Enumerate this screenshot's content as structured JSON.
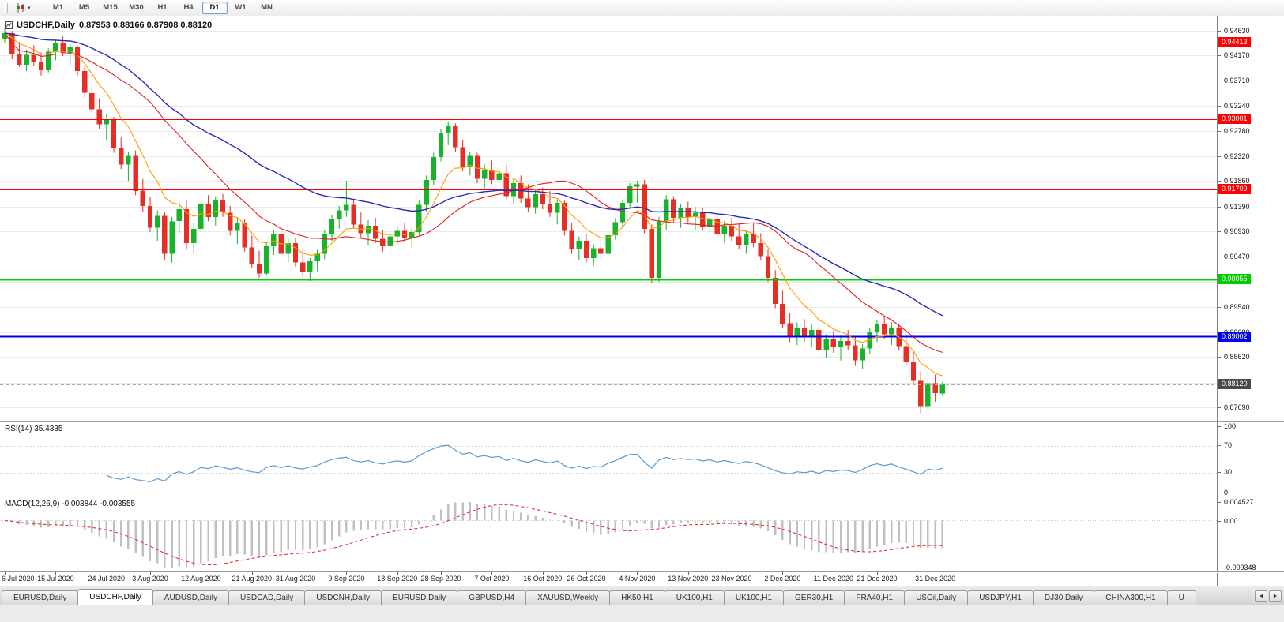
{
  "toolbar": {
    "timeframes": [
      "M1",
      "M5",
      "M15",
      "M30",
      "H1",
      "H4",
      "D1",
      "W1",
      "MN"
    ],
    "active_timeframe": "D1"
  },
  "icons": {
    "chart_type_dropdown": "▾",
    "tabs_scroll_left": "◄",
    "tabs_scroll_right": "►"
  },
  "chart_header": {
    "title": "USDCHF,Daily",
    "ohlc": "0.87953 0.88166 0.87908 0.88120"
  },
  "rsi_panel": {
    "label": "RSI(14) 35.4335",
    "levels": [
      "100",
      "70",
      "30",
      "0"
    ],
    "level_values": [
      100,
      70,
      30,
      0
    ]
  },
  "macd_panel": {
    "label": "MACD(12,26,9) -0.003844 -0.003555",
    "axis_max": "0.004527",
    "axis_zero": "0.00",
    "axis_min": "-0.009348"
  },
  "colors": {
    "candle_up": "#17b32a",
    "candle_down": "#e62e24",
    "grid": "#ebebeb",
    "rsi_line": "#5a9bd4",
    "rsi_level": "#c8c8c8",
    "macd_hist": "#c0c0c0",
    "macd_signal": "#e02020",
    "price_label_bg": "#4a4a4a",
    "current_price_line": "#ababab"
  },
  "tabs": {
    "items": [
      {
        "label": "EURUSD,Daily",
        "active": false
      },
      {
        "label": "USDCHF,Daily",
        "active": true
      },
      {
        "label": "AUDUSD,Daily",
        "active": false
      },
      {
        "label": "USDCAD,Daily",
        "active": false
      },
      {
        "label": "USDCNH,Daily",
        "active": false
      },
      {
        "label": "EURUSD,Daily",
        "active": false
      },
      {
        "label": "GBPUSD,H4",
        "active": false
      },
      {
        "label": "XAUUSD,Weekly",
        "active": false
      },
      {
        "label": "HK50,H1",
        "active": false
      },
      {
        "label": "UK100,H1",
        "active": false
      },
      {
        "label": "UK100,H1",
        "active": false
      },
      {
        "label": "GER30,H1",
        "active": false
      },
      {
        "label": "FRA40,H1",
        "active": false
      },
      {
        "label": "USOil,Daily",
        "active": false
      },
      {
        "label": "USDJPY,H1",
        "active": false
      },
      {
        "label": "DJ30,Daily",
        "active": false
      },
      {
        "label": "CHINA300,H1",
        "active": false
      },
      {
        "label": "U",
        "active": false
      }
    ]
  },
  "chart_data": {
    "type": "candlestick+indicators",
    "symbol": "USDCHF",
    "period": "Daily",
    "last_ohlc": {
      "open": 0.87953,
      "high": 0.88166,
      "low": 0.87908,
      "close": 0.8812
    },
    "y_range": [
      0.8745,
      0.949
    ],
    "price_axis_ticks": [
      "0.94630",
      "0.94170",
      "0.93710",
      "0.93240",
      "0.92780",
      "0.92320",
      "0.91860",
      "0.91390",
      "0.90930",
      "0.90470",
      "0.90000",
      "0.89540",
      "0.89080",
      "0.88620",
      "0.88150",
      "0.87690"
    ],
    "hlines": [
      {
        "price": 0.94413,
        "label": "0.94413",
        "color": "#ff0000",
        "width": 1.2
      },
      {
        "price": 0.93001,
        "label": "0.93001",
        "color": "#ff0000",
        "width": 1.2
      },
      {
        "price": 0.91709,
        "label": "0.91709",
        "color": "#ff0000",
        "width": 1.2
      },
      {
        "price": 0.90055,
        "label": "0.90055",
        "color": "#00cc00",
        "width": 1.6
      },
      {
        "price": 0.89002,
        "label": "0.89002",
        "color": "#0000ee",
        "width": 2.2
      }
    ],
    "current_price": {
      "value": 0.8812,
      "label": "0.88120"
    },
    "moving_averages": [
      {
        "name": "fast",
        "method": "ema",
        "period": 8,
        "color": "#ff9c00",
        "width": 1.1
      },
      {
        "name": "mid",
        "method": "sma",
        "period": 21,
        "color": "#e02020",
        "width": 1.1
      },
      {
        "name": "slow",
        "method": "ema",
        "period": 40,
        "color": "#2a2ab8",
        "width": 1.4
      }
    ],
    "rsi": {
      "period": 14,
      "last_value": 35.4335
    },
    "macd": {
      "fast": 12,
      "slow": 26,
      "signal": 9,
      "last_macd": -0.003844,
      "last_signal": -0.003555
    },
    "date_axis": {
      "labels": [
        "6 Jul 2020",
        "15 Jul 2020",
        "24 Jul 2020",
        "3 Aug 2020",
        "12 Aug 2020",
        "21 Aug 2020",
        "31 Aug 2020",
        "9 Sep 2020",
        "18 Sep 2020",
        "28 Sep 2020",
        "7 Oct 2020",
        "16 Oct 2020",
        "26 Oct 2020",
        "4 Nov 2020",
        "13 Nov 2020",
        "23 Nov 2020",
        "2 Dec 2020",
        "11 Dec 2020",
        "21 Dec 2020",
        "31 Dec 2020"
      ],
      "indices": [
        0,
        7,
        14,
        20,
        27,
        34,
        40,
        47,
        54,
        60,
        67,
        74,
        80,
        87,
        94,
        100,
        107,
        114,
        120,
        128
      ]
    },
    "candles": [
      [
        0.9448,
        0.9466,
        0.944,
        0.9458
      ],
      [
        0.9458,
        0.9462,
        0.941,
        0.942
      ],
      [
        0.942,
        0.9442,
        0.9396,
        0.94
      ],
      [
        0.94,
        0.9428,
        0.9388,
        0.9418
      ],
      [
        0.9418,
        0.9436,
        0.9398,
        0.9406
      ],
      [
        0.9406,
        0.9422,
        0.938,
        0.939
      ],
      [
        0.939,
        0.943,
        0.9386,
        0.9424
      ],
      [
        0.9424,
        0.9446,
        0.9408,
        0.944
      ],
      [
        0.944,
        0.9452,
        0.9416,
        0.9422
      ],
      [
        0.9422,
        0.9438,
        0.94,
        0.9432
      ],
      [
        0.9432,
        0.9436,
        0.938,
        0.9388
      ],
      [
        0.9388,
        0.9398,
        0.934,
        0.9348
      ],
      [
        0.9348,
        0.9366,
        0.931,
        0.9318
      ],
      [
        0.9318,
        0.9338,
        0.9282,
        0.929
      ],
      [
        0.929,
        0.931,
        0.9262,
        0.93
      ],
      [
        0.93,
        0.9304,
        0.9238,
        0.9246
      ],
      [
        0.9246,
        0.9266,
        0.9208,
        0.9216
      ],
      [
        0.9216,
        0.924,
        0.9186,
        0.9232
      ],
      [
        0.9232,
        0.9242,
        0.916,
        0.9168
      ],
      [
        0.9168,
        0.919,
        0.913,
        0.914
      ],
      [
        0.914,
        0.9156,
        0.9092,
        0.91
      ],
      [
        0.91,
        0.9132,
        0.9076,
        0.9122
      ],
      [
        0.9122,
        0.913,
        0.904,
        0.9052
      ],
      [
        0.9052,
        0.912,
        0.9036,
        0.9112
      ],
      [
        0.9112,
        0.9146,
        0.909,
        0.9134
      ],
      [
        0.9134,
        0.915,
        0.906,
        0.9072
      ],
      [
        0.9072,
        0.911,
        0.9052,
        0.9098
      ],
      [
        0.9098,
        0.9152,
        0.9088,
        0.9144
      ],
      [
        0.9144,
        0.916,
        0.9112,
        0.912
      ],
      [
        0.912,
        0.9158,
        0.9104,
        0.915
      ],
      [
        0.915,
        0.9162,
        0.912,
        0.9128
      ],
      [
        0.9128,
        0.914,
        0.9086,
        0.9094
      ],
      [
        0.9094,
        0.9118,
        0.907,
        0.9108
      ],
      [
        0.9108,
        0.9116,
        0.9056,
        0.9064
      ],
      [
        0.9064,
        0.9086,
        0.9026,
        0.9034
      ],
      [
        0.9034,
        0.9058,
        0.9008,
        0.9016
      ],
      [
        0.9016,
        0.9074,
        0.9012,
        0.9066
      ],
      [
        0.9066,
        0.9096,
        0.905,
        0.9088
      ],
      [
        0.9088,
        0.91,
        0.9044,
        0.9052
      ],
      [
        0.9052,
        0.908,
        0.9036,
        0.9072
      ],
      [
        0.9072,
        0.9082,
        0.9028,
        0.9036
      ],
      [
        0.9036,
        0.906,
        0.901,
        0.9018
      ],
      [
        0.9018,
        0.9044,
        0.9002,
        0.9038
      ],
      [
        0.9038,
        0.906,
        0.902,
        0.9052
      ],
      [
        0.9052,
        0.9096,
        0.9042,
        0.9088
      ],
      [
        0.9088,
        0.9124,
        0.9076,
        0.9116
      ],
      [
        0.9116,
        0.914,
        0.9098,
        0.9132
      ],
      [
        0.9132,
        0.9186,
        0.912,
        0.9142
      ],
      [
        0.9142,
        0.915,
        0.9098,
        0.9106
      ],
      [
        0.9106,
        0.9128,
        0.908,
        0.909
      ],
      [
        0.909,
        0.9114,
        0.9068,
        0.9104
      ],
      [
        0.9104,
        0.9118,
        0.9072,
        0.908
      ],
      [
        0.908,
        0.9096,
        0.9056,
        0.9066
      ],
      [
        0.9066,
        0.9092,
        0.905,
        0.9084
      ],
      [
        0.9084,
        0.9104,
        0.9068,
        0.9094
      ],
      [
        0.9094,
        0.911,
        0.9074,
        0.9082
      ],
      [
        0.9082,
        0.91,
        0.9064,
        0.9092
      ],
      [
        0.9092,
        0.915,
        0.9086,
        0.9142
      ],
      [
        0.9142,
        0.9196,
        0.913,
        0.9188
      ],
      [
        0.9188,
        0.9238,
        0.9178,
        0.923
      ],
      [
        0.923,
        0.9282,
        0.9222,
        0.9274
      ],
      [
        0.9274,
        0.9296,
        0.9252,
        0.9288
      ],
      [
        0.9288,
        0.9292,
        0.924,
        0.9248
      ],
      [
        0.9248,
        0.9262,
        0.9204,
        0.9212
      ],
      [
        0.9212,
        0.924,
        0.9196,
        0.9232
      ],
      [
        0.9232,
        0.9238,
        0.9182,
        0.919
      ],
      [
        0.919,
        0.9216,
        0.917,
        0.9206
      ],
      [
        0.9206,
        0.9224,
        0.918,
        0.9188
      ],
      [
        0.9188,
        0.921,
        0.9166,
        0.92
      ],
      [
        0.92,
        0.9218,
        0.915,
        0.9158
      ],
      [
        0.9158,
        0.919,
        0.9144,
        0.9182
      ],
      [
        0.9182,
        0.9196,
        0.9146,
        0.9154
      ],
      [
        0.9154,
        0.918,
        0.913,
        0.9138
      ],
      [
        0.9138,
        0.917,
        0.9126,
        0.9162
      ],
      [
        0.9162,
        0.9174,
        0.9134,
        0.9144
      ],
      [
        0.9144,
        0.9168,
        0.912,
        0.9128
      ],
      [
        0.9128,
        0.9152,
        0.9106,
        0.9146
      ],
      [
        0.9146,
        0.915,
        0.9086,
        0.9094
      ],
      [
        0.9094,
        0.911,
        0.9052,
        0.906
      ],
      [
        0.906,
        0.9084,
        0.904,
        0.9076
      ],
      [
        0.9076,
        0.9088,
        0.9036,
        0.9044
      ],
      [
        0.9044,
        0.907,
        0.903,
        0.9062
      ],
      [
        0.9062,
        0.908,
        0.9042,
        0.9052
      ],
      [
        0.9052,
        0.9092,
        0.9046,
        0.9086
      ],
      [
        0.9086,
        0.9118,
        0.9078,
        0.911
      ],
      [
        0.911,
        0.9152,
        0.9102,
        0.9146
      ],
      [
        0.9146,
        0.9182,
        0.9136,
        0.9176
      ],
      [
        0.9176,
        0.9186,
        0.9146,
        0.918
      ],
      [
        0.918,
        0.9188,
        0.909,
        0.9098
      ],
      [
        0.9098,
        0.9106,
        0.8998,
        0.9008
      ],
      [
        0.9008,
        0.912,
        0.9,
        0.9112
      ],
      [
        0.9112,
        0.916,
        0.9096,
        0.9152
      ],
      [
        0.9152,
        0.9158,
        0.9108,
        0.9118
      ],
      [
        0.9118,
        0.9144,
        0.91,
        0.9136
      ],
      [
        0.9136,
        0.9148,
        0.911,
        0.912
      ],
      [
        0.912,
        0.9138,
        0.9096,
        0.9128
      ],
      [
        0.9128,
        0.9136,
        0.9094,
        0.9102
      ],
      [
        0.9102,
        0.9124,
        0.9086,
        0.9116
      ],
      [
        0.9116,
        0.9126,
        0.908,
        0.9088
      ],
      [
        0.9088,
        0.9112,
        0.9072,
        0.9104
      ],
      [
        0.9104,
        0.9118,
        0.9076,
        0.9084
      ],
      [
        0.9084,
        0.9106,
        0.906,
        0.9068
      ],
      [
        0.9068,
        0.9096,
        0.9052,
        0.9088
      ],
      [
        0.9088,
        0.9108,
        0.9064,
        0.9072
      ],
      [
        0.9072,
        0.909,
        0.904,
        0.9048
      ],
      [
        0.9048,
        0.906,
        0.9,
        0.9008
      ],
      [
        0.9008,
        0.9022,
        0.8952,
        0.896
      ],
      [
        0.896,
        0.8984,
        0.8916,
        0.8924
      ],
      [
        0.8924,
        0.8944,
        0.889,
        0.8898
      ],
      [
        0.8898,
        0.8926,
        0.8884,
        0.8916
      ],
      [
        0.8916,
        0.8932,
        0.889,
        0.89
      ],
      [
        0.89,
        0.8922,
        0.888,
        0.8912
      ],
      [
        0.8912,
        0.892,
        0.8866,
        0.8874
      ],
      [
        0.8874,
        0.8904,
        0.886,
        0.8896
      ],
      [
        0.8896,
        0.891,
        0.887,
        0.888
      ],
      [
        0.888,
        0.8902,
        0.8856,
        0.8892
      ],
      [
        0.8892,
        0.8912,
        0.8874,
        0.8884
      ],
      [
        0.8884,
        0.89,
        0.8846,
        0.8856
      ],
      [
        0.8856,
        0.8886,
        0.884,
        0.8878
      ],
      [
        0.8878,
        0.8916,
        0.8868,
        0.8908
      ],
      [
        0.8908,
        0.893,
        0.889,
        0.8922
      ],
      [
        0.8922,
        0.8936,
        0.8896,
        0.8904
      ],
      [
        0.8904,
        0.8926,
        0.8884,
        0.8916
      ],
      [
        0.8916,
        0.8924,
        0.8874,
        0.8882
      ],
      [
        0.8882,
        0.8902,
        0.8846,
        0.8854
      ],
      [
        0.8854,
        0.8872,
        0.881,
        0.8818
      ],
      [
        0.8818,
        0.8836,
        0.8758,
        0.8772
      ],
      [
        0.8772,
        0.8824,
        0.8764,
        0.8814
      ],
      [
        0.8814,
        0.883,
        0.878,
        0.8796
      ],
      [
        0.87953,
        0.88166,
        0.87908,
        0.8812
      ]
    ]
  }
}
